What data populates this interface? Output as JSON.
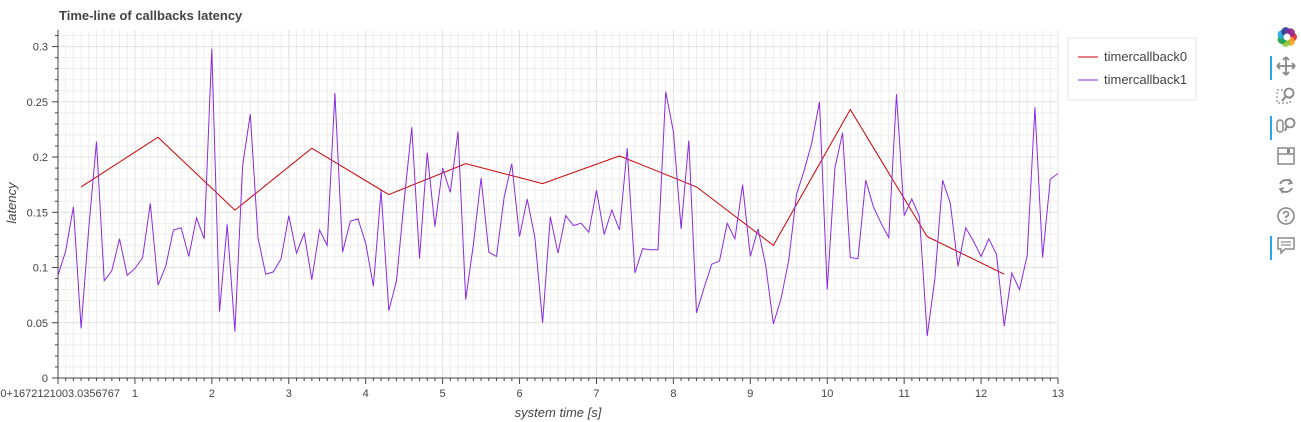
{
  "chart_data": {
    "type": "line",
    "title": "Time-line of callbacks latency",
    "xlabel": "system time [s]",
    "ylabel": "latency",
    "xlim": [
      0,
      13
    ],
    "ylim": [
      0,
      0.315
    ],
    "x_ticks": [
      {
        "value": 0,
        "label": "0+1672121003.0356767"
      },
      {
        "value": 1,
        "label": "1"
      },
      {
        "value": 2,
        "label": "2"
      },
      {
        "value": 3,
        "label": "3"
      },
      {
        "value": 4,
        "label": "4"
      },
      {
        "value": 5,
        "label": "5"
      },
      {
        "value": 6,
        "label": "6"
      },
      {
        "value": 7,
        "label": "7"
      },
      {
        "value": 8,
        "label": "8"
      },
      {
        "value": 9,
        "label": "9"
      },
      {
        "value": 10,
        "label": "10"
      },
      {
        "value": 11,
        "label": "11"
      },
      {
        "value": 12,
        "label": "12"
      },
      {
        "value": 13,
        "label": "13"
      }
    ],
    "y_ticks": [
      {
        "value": 0,
        "label": "0"
      },
      {
        "value": 0.05,
        "label": "0.05"
      },
      {
        "value": 0.1,
        "label": "0.1"
      },
      {
        "value": 0.15,
        "label": "0.15"
      },
      {
        "value": 0.2,
        "label": "0.2"
      },
      {
        "value": 0.25,
        "label": "0.25"
      },
      {
        "value": 0.3,
        "label": "0.3"
      }
    ],
    "grid": true,
    "legend_position": "right",
    "series": [
      {
        "name": "timercallback0",
        "color": "#cc0000",
        "x": [
          0.3,
          1.3,
          2.3,
          3.3,
          4.3,
          5.3,
          6.3,
          7.3,
          8.3,
          9.3,
          10.3,
          11.3,
          12.3
        ],
        "y": [
          0.173,
          0.218,
          0.152,
          0.208,
          0.166,
          0.194,
          0.176,
          0.201,
          0.173,
          0.12,
          0.243,
          0.128,
          0.094
        ]
      },
      {
        "name": "timercallback1",
        "color": "#8a2be2",
        "x": [
          0.0,
          0.1,
          0.2,
          0.3,
          0.4,
          0.5,
          0.6,
          0.7,
          0.8,
          0.9,
          1.0,
          1.1,
          1.2,
          1.3,
          1.4,
          1.5,
          1.6,
          1.7,
          1.8,
          1.9,
          2.0,
          2.1,
          2.2,
          2.3,
          2.4,
          2.5,
          2.6,
          2.7,
          2.8,
          2.9,
          3.0,
          3.1,
          3.2,
          3.3,
          3.4,
          3.5,
          3.6,
          3.7,
          3.8,
          3.9,
          4.0,
          4.1,
          4.2,
          4.3,
          4.4,
          4.5,
          4.6,
          4.7,
          4.8,
          4.9,
          5.0,
          5.1,
          5.2,
          5.3,
          5.4,
          5.5,
          5.6,
          5.7,
          5.8,
          5.9,
          6.0,
          6.1,
          6.2,
          6.3,
          6.4,
          6.5,
          6.6,
          6.7,
          6.8,
          6.9,
          7.0,
          7.1,
          7.2,
          7.3,
          7.4,
          7.5,
          7.6,
          7.7,
          7.8,
          7.9,
          8.0,
          8.1,
          8.2,
          8.3,
          8.4,
          8.5,
          8.6,
          8.7,
          8.8,
          8.9,
          9.0,
          9.1,
          9.2,
          9.3,
          9.4,
          9.5,
          9.6,
          9.7,
          9.8,
          9.9,
          10.0,
          10.1,
          10.2,
          10.3,
          10.4,
          10.5,
          10.6,
          10.7,
          10.8,
          10.9,
          11.0,
          11.1,
          11.2,
          11.3,
          11.4,
          11.5,
          11.6,
          11.7,
          11.8,
          11.9,
          12.0,
          12.1,
          12.2,
          12.3,
          12.4,
          12.5,
          12.6,
          12.7,
          12.8,
          12.9,
          13.0
        ],
        "y": [
          0.093,
          0.115,
          0.155,
          0.045,
          0.136,
          0.214,
          0.088,
          0.097,
          0.126,
          0.093,
          0.099,
          0.109,
          0.158,
          0.084,
          0.101,
          0.134,
          0.136,
          0.11,
          0.145,
          0.126,
          0.298,
          0.06,
          0.139,
          0.042,
          0.192,
          0.239,
          0.127,
          0.094,
          0.096,
          0.108,
          0.147,
          0.113,
          0.131,
          0.089,
          0.134,
          0.12,
          0.258,
          0.114,
          0.142,
          0.144,
          0.122,
          0.083,
          0.17,
          0.061,
          0.088,
          0.161,
          0.227,
          0.108,
          0.204,
          0.137,
          0.19,
          0.168,
          0.223,
          0.071,
          0.121,
          0.181,
          0.114,
          0.11,
          0.164,
          0.194,
          0.128,
          0.162,
          0.127,
          0.05,
          0.146,
          0.113,
          0.147,
          0.138,
          0.14,
          0.132,
          0.17,
          0.13,
          0.152,
          0.134,
          0.208,
          0.095,
          0.117,
          0.116,
          0.116,
          0.259,
          0.223,
          0.135,
          0.215,
          0.059,
          0.082,
          0.103,
          0.106,
          0.14,
          0.126,
          0.175,
          0.11,
          0.135,
          0.102,
          0.049,
          0.072,
          0.107,
          0.166,
          0.188,
          0.213,
          0.25,
          0.08,
          0.19,
          0.222,
          0.109,
          0.108,
          0.179,
          0.155,
          0.14,
          0.127,
          0.257,
          0.147,
          0.162,
          0.146,
          0.038,
          0.09,
          0.179,
          0.158,
          0.101,
          0.136,
          0.124,
          0.11,
          0.126,
          0.112,
          0.047,
          0.095,
          0.08,
          0.111,
          0.245,
          0.109,
          0.18,
          0.185
        ]
      }
    ]
  },
  "toolbar": {
    "logo_colors": [
      "#e7222d",
      "#f7a51f",
      "#8fc73e",
      "#1a9e48",
      "#26aae1",
      "#2b3990",
      "#92278f"
    ],
    "tools": [
      {
        "name": "pan-tool-icon",
        "active": true
      },
      {
        "name": "box-zoom-tool-icon",
        "active": false
      },
      {
        "name": "wheel-zoom-tool-icon",
        "active": true
      },
      {
        "name": "save-tool-icon",
        "active": false
      },
      {
        "name": "reset-tool-icon",
        "active": false
      },
      {
        "name": "help-tool-icon",
        "active": false
      },
      {
        "name": "hover-tool-icon",
        "active": true
      }
    ]
  }
}
